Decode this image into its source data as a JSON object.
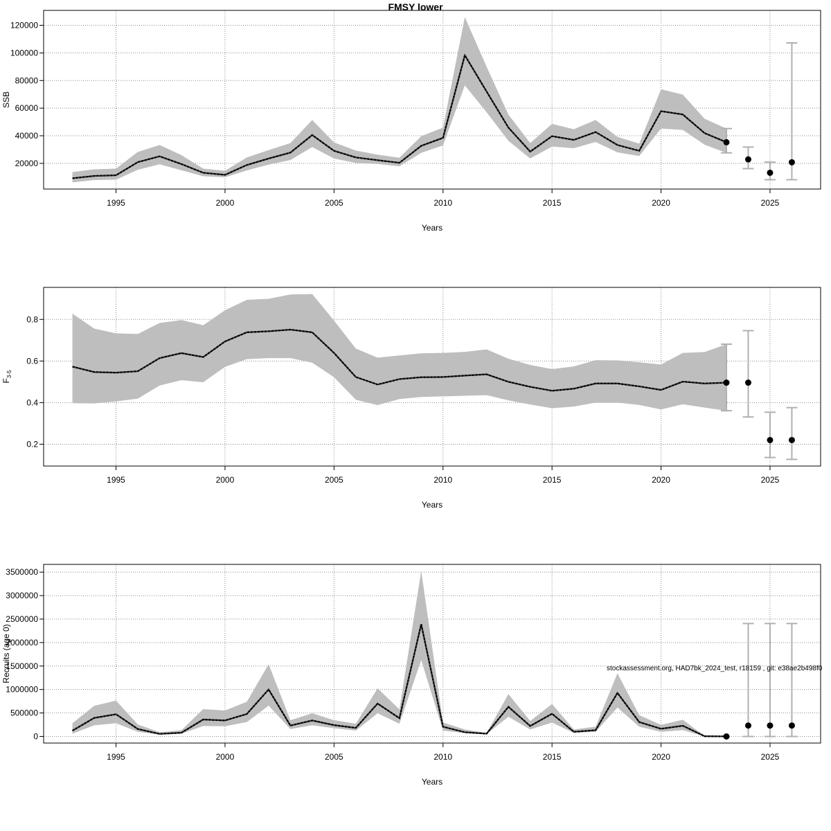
{
  "title": "FMSY lower",
  "watermark": "stockassessment.org, HAD7bk_2024_test, r18159 , git: e38ae2b498f0",
  "colors": {
    "band": "#bebebe",
    "line": "#000000",
    "errorbar": "#b0b0b0",
    "grid": "#888888"
  },
  "chart_data": [
    {
      "type": "line",
      "xlabel": "Years",
      "ylabel": "SSB",
      "xlim": [
        1991.68,
        2027.32
      ],
      "ylim": [
        1400,
        130800
      ],
      "xticks": [
        1995,
        2000,
        2005,
        2010,
        2015,
        2020,
        2025
      ],
      "yticks": [
        20000,
        40000,
        60000,
        80000,
        100000,
        120000
      ],
      "grid": true,
      "years": [
        1993,
        1994,
        1995,
        1996,
        1997,
        1998,
        1999,
        2000,
        2001,
        2002,
        2003,
        2004,
        2005,
        2006,
        2007,
        2008,
        2009,
        2010,
        2011,
        2012,
        2013,
        2014,
        2015,
        2016,
        2017,
        2018,
        2019,
        2020,
        2021,
        2022,
        2023
      ],
      "estimate": [
        9200,
        10900,
        11400,
        20900,
        25100,
        19500,
        13200,
        11700,
        18800,
        23500,
        27800,
        40500,
        29100,
        24300,
        22300,
        20400,
        32700,
        38500,
        98300,
        72000,
        45900,
        28500,
        39700,
        37000,
        42700,
        33300,
        29100,
        57800,
        55400,
        41900,
        35300
      ],
      "lower": [
        6200,
        7900,
        8200,
        15400,
        19300,
        15000,
        10700,
        9900,
        14900,
        19100,
        22400,
        31800,
        23500,
        20300,
        19600,
        17900,
        27600,
        33000,
        76500,
        57000,
        36300,
        23500,
        32200,
        31000,
        35500,
        28000,
        25300,
        45200,
        44200,
        33500,
        27600
      ],
      "upper": [
        13700,
        15700,
        16200,
        28300,
        33300,
        26000,
        16200,
        14600,
        24300,
        29600,
        34700,
        51400,
        35200,
        29300,
        26300,
        24100,
        39700,
        45900,
        126000,
        90000,
        55300,
        34700,
        48600,
        44700,
        51400,
        39200,
        34300,
        73700,
        69800,
        52300,
        45200
      ],
      "points": [
        {
          "year": 2023,
          "value": 35300,
          "low": 27600,
          "high": 45200
        },
        {
          "year": 2024,
          "value": 22900,
          "low": 16200,
          "high": 31800
        },
        {
          "year": 2025,
          "value": 13200,
          "low": 8200,
          "high": 20900
        },
        {
          "year": 2026,
          "value": 20800,
          "low": 8200,
          "high": 107200
        }
      ]
    },
    {
      "type": "line",
      "xlabel": "Years",
      "ylabel": "F3-5",
      "ylabel_main": "F",
      "ylabel_sub": "3-5",
      "xlim": [
        1991.68,
        2027.32
      ],
      "ylim": [
        0.095,
        0.954
      ],
      "xticks": [
        1995,
        2000,
        2005,
        2010,
        2015,
        2020,
        2025
      ],
      "yticks": [
        0.2,
        0.4,
        0.6,
        0.8
      ],
      "grid": true,
      "years": [
        1993,
        1994,
        1995,
        1996,
        1997,
        1998,
        1999,
        2000,
        2001,
        2002,
        2003,
        2004,
        2005,
        2006,
        2007,
        2008,
        2009,
        2010,
        2011,
        2012,
        2013,
        2014,
        2015,
        2016,
        2017,
        2018,
        2019,
        2020,
        2021,
        2022,
        2023
      ],
      "estimate": [
        0.573,
        0.547,
        0.544,
        0.551,
        0.614,
        0.638,
        0.619,
        0.694,
        0.738,
        0.743,
        0.751,
        0.738,
        0.639,
        0.523,
        0.487,
        0.513,
        0.522,
        0.523,
        0.53,
        0.536,
        0.5,
        0.476,
        0.457,
        0.467,
        0.492,
        0.492,
        0.478,
        0.461,
        0.501,
        0.492,
        0.496
      ],
      "lower": [
        0.397,
        0.396,
        0.406,
        0.419,
        0.482,
        0.508,
        0.498,
        0.572,
        0.609,
        0.614,
        0.614,
        0.592,
        0.522,
        0.414,
        0.388,
        0.417,
        0.427,
        0.43,
        0.433,
        0.436,
        0.411,
        0.391,
        0.373,
        0.381,
        0.4,
        0.4,
        0.389,
        0.367,
        0.392,
        0.376,
        0.361
      ],
      "upper": [
        0.828,
        0.756,
        0.733,
        0.73,
        0.783,
        0.797,
        0.772,
        0.844,
        0.894,
        0.899,
        0.92,
        0.922,
        0.794,
        0.66,
        0.616,
        0.627,
        0.637,
        0.639,
        0.644,
        0.656,
        0.611,
        0.581,
        0.561,
        0.574,
        0.604,
        0.603,
        0.594,
        0.583,
        0.639,
        0.643,
        0.681
      ],
      "points": [
        {
          "year": 2023,
          "value": 0.496,
          "low": 0.361,
          "high": 0.681
        },
        {
          "year": 2024,
          "value": 0.496,
          "low": 0.331,
          "high": 0.746
        },
        {
          "year": 2025,
          "value": 0.22,
          "low": 0.136,
          "high": 0.354
        },
        {
          "year": 2026,
          "value": 0.22,
          "low": 0.127,
          "high": 0.376
        }
      ]
    },
    {
      "type": "line",
      "xlabel": "Years",
      "ylabel": "Recruits (age 0)",
      "xlim": [
        1991.68,
        2027.32
      ],
      "ylim": [
        -141000,
        3665000
      ],
      "xticks": [
        1995,
        2000,
        2005,
        2010,
        2015,
        2020,
        2025
      ],
      "yticks": [
        0,
        500000,
        1000000,
        1500000,
        2000000,
        2500000,
        3000000,
        3500000
      ],
      "grid": true,
      "years": [
        1993,
        1994,
        1995,
        1996,
        1997,
        1998,
        1999,
        2000,
        2001,
        2002,
        2003,
        2004,
        2005,
        2006,
        2007,
        2008,
        2009,
        2010,
        2011,
        2012,
        2013,
        2014,
        2015,
        2016,
        2017,
        2018,
        2019,
        2020,
        2021,
        2022,
        2023
      ],
      "estimate": [
        123000,
        394000,
        473000,
        158000,
        54000,
        79000,
        360000,
        340000,
        478000,
        1000000,
        232000,
        340000,
        241000,
        182000,
        700000,
        389000,
        2390000,
        207000,
        89000,
        59000,
        631000,
        222000,
        483000,
        99000,
        133000,
        927000,
        306000,
        163000,
        227000,
        5000,
        0
      ],
      "lower": [
        59000,
        237000,
        281000,
        99000,
        39000,
        59000,
        222000,
        217000,
        306000,
        655000,
        158000,
        237000,
        177000,
        123000,
        493000,
        271000,
        1626000,
        123000,
        74000,
        49000,
        419000,
        148000,
        296000,
        74000,
        99000,
        616000,
        207000,
        99000,
        133000,
        3000,
        0
      ],
      "upper": [
        281000,
        651000,
        764000,
        256000,
        89000,
        133000,
        582000,
        552000,
        739000,
        1538000,
        345000,
        493000,
        345000,
        271000,
        1025000,
        577000,
        3524000,
        296000,
        148000,
        74000,
        902000,
        330000,
        690000,
        148000,
        207000,
        1345000,
        453000,
        246000,
        355000,
        8000,
        0
      ],
      "points": [
        {
          "year": 2023,
          "value": 0,
          "low": 0,
          "high": 0
        },
        {
          "year": 2024,
          "value": 232000,
          "low": 0,
          "high": 2405000
        },
        {
          "year": 2025,
          "value": 232000,
          "low": 0,
          "high": 2405000
        },
        {
          "year": 2026,
          "value": 232000,
          "low": 0,
          "high": 2405000
        }
      ]
    }
  ]
}
